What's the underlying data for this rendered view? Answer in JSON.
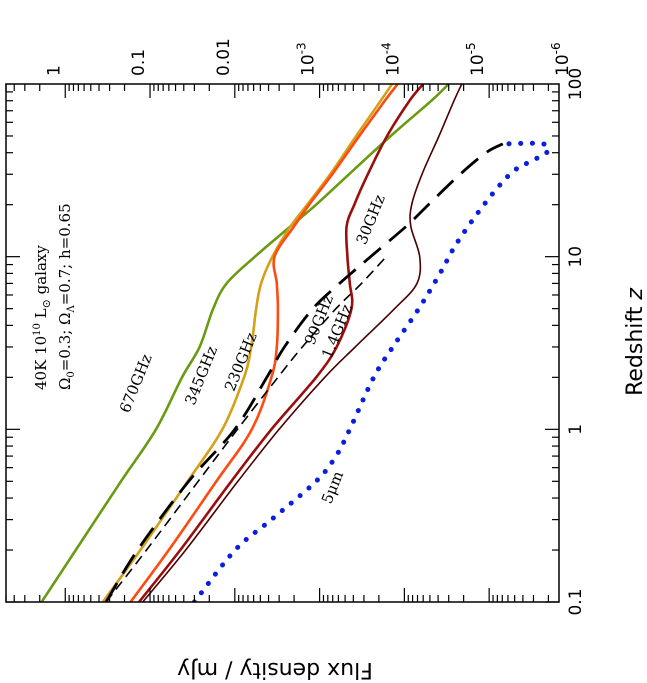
{
  "chart_data": {
    "type": "line",
    "orientation": "rotated-90-clockwise",
    "xlabel_parts": {
      "text": "Redshift ",
      "var": "z"
    },
    "ylabel": "Flux density / mJy",
    "x_scale": "log",
    "y_scale": "log",
    "xlim": [
      0.1,
      100
    ],
    "ylim": [
      1.5e-06,
      5
    ],
    "x_ticks": [
      {
        "value": 0.1,
        "label": "0.1"
      },
      {
        "value": 1,
        "label": "1"
      },
      {
        "value": 10,
        "label": "10"
      },
      {
        "value": 100,
        "label": "100"
      }
    ],
    "y_ticks": [
      {
        "value": 1,
        "label": "1",
        "base": "",
        "exp": ""
      },
      {
        "value": 0.1,
        "label": "0.1",
        "base": "",
        "exp": ""
      },
      {
        "value": 0.01,
        "label": "0.01",
        "base": "",
        "exp": ""
      },
      {
        "value": 0.001,
        "label": "",
        "base": "10",
        "exp": "-3"
      },
      {
        "value": 0.0001,
        "label": "",
        "base": "10",
        "exp": "-4"
      },
      {
        "value": 1e-05,
        "label": "",
        "base": "10",
        "exp": "-5"
      },
      {
        "value": 1e-06,
        "label": "",
        "base": "10",
        "exp": "-6"
      }
    ],
    "annotations": {
      "line1": {
        "prefix": "40K 10",
        "sup": "10",
        "mid": " L",
        "sub": "⊙",
        "suffix": " galaxy"
      },
      "line2": {
        "o": "Ω",
        "sub0": "0",
        "p1": "=0.3; ",
        "o2": "Ω",
        "subL": "Λ",
        "p2": "=0.7; h=0.65"
      }
    },
    "series": [
      {
        "name": "670GHz",
        "color": "#6b9a12",
        "width": 2.6,
        "dash": "",
        "points": [
          [
            0.1,
            1.9
          ],
          [
            0.2,
            0.75
          ],
          [
            0.5,
            0.22
          ],
          [
            1,
            0.085
          ],
          [
            2,
            0.042
          ],
          [
            3,
            0.026
          ],
          [
            5,
            0.018
          ],
          [
            7,
            0.0125
          ],
          [
            10,
            0.0058
          ],
          [
            15,
            0.0022
          ],
          [
            20,
            0.0011
          ],
          [
            30,
            0.00045
          ],
          [
            50,
            0.000145
          ],
          [
            80,
            4.8e-05
          ],
          [
            100,
            3e-05
          ]
        ]
      },
      {
        "name": "345GHz",
        "color": "#d4a017",
        "width": 2.6,
        "dash": "",
        "points": [
          [
            0.1,
            0.36
          ],
          [
            0.2,
            0.13
          ],
          [
            0.5,
            0.036
          ],
          [
            1,
            0.014
          ],
          [
            2,
            0.0078
          ],
          [
            3,
            0.0064
          ],
          [
            5,
            0.0056
          ],
          [
            7,
            0.0049
          ],
          [
            10,
            0.0036
          ],
          [
            15,
            0.0022
          ],
          [
            20,
            0.0014
          ],
          [
            30,
            0.00075
          ],
          [
            50,
            0.00037
          ],
          [
            80,
            0.00019
          ],
          [
            100,
            0.00014
          ]
        ]
      },
      {
        "name": "230GHz",
        "color": "#ff4a12",
        "width": 2.6,
        "dash": "",
        "points": [
          [
            0.1,
            0.17
          ],
          [
            0.2,
            0.06
          ],
          [
            0.5,
            0.0165
          ],
          [
            1,
            0.0063
          ],
          [
            2,
            0.0037
          ],
          [
            3,
            0.0032
          ],
          [
            5,
            0.0031
          ],
          [
            7,
            0.0032
          ],
          [
            10,
            0.0034
          ],
          [
            15,
            0.002
          ],
          [
            20,
            0.00133
          ],
          [
            30,
            0.00071
          ],
          [
            50,
            0.00034
          ],
          [
            80,
            0.00017
          ],
          [
            100,
            0.00012
          ]
        ]
      },
      {
        "name": "1.4GHz",
        "color": "#000000",
        "width": 1.6,
        "dash": "10,6",
        "points": [
          [
            0.1,
            0.33
          ],
          [
            0.2,
            0.11
          ],
          [
            0.5,
            0.027
          ],
          [
            1,
            0.0093
          ],
          [
            2,
            0.0031
          ],
          [
            3,
            0.0016
          ],
          [
            5,
            0.00064
          ],
          [
            7,
            0.00032
          ],
          [
            10,
            0.000164
          ]
        ]
      },
      {
        "name": "90GHz",
        "color": "#9c0e0e",
        "width": 2.6,
        "dash": "",
        "points": [
          [
            0.1,
            0.135
          ],
          [
            0.2,
            0.044
          ],
          [
            0.5,
            0.011
          ],
          [
            1,
            0.0037
          ],
          [
            2,
            0.0011
          ],
          [
            3,
            0.00063
          ],
          [
            5,
            0.00042
          ],
          [
            7,
            0.00044
          ],
          [
            10,
            0.00047
          ],
          [
            15,
            0.00048
          ],
          [
            20,
            0.00039
          ],
          [
            30,
            0.00027
          ],
          [
            50,
            0.00016
          ],
          [
            80,
            8.7e-05
          ],
          [
            100,
            6e-05
          ]
        ]
      },
      {
        "name": "30GHz",
        "color": "#4a0000",
        "width": 1.6,
        "dash": "",
        "points": [
          [
            0.1,
            0.122
          ],
          [
            0.2,
            0.038
          ],
          [
            0.5,
            0.0092
          ],
          [
            1,
            0.003
          ],
          [
            2,
            0.00087
          ],
          [
            3,
            0.00038
          ],
          [
            5,
            0.00013
          ],
          [
            7,
            7.1e-05
          ],
          [
            10,
            6.6e-05
          ],
          [
            15,
            8.4e-05
          ],
          [
            20,
            8.2e-05
          ],
          [
            30,
            6.2e-05
          ],
          [
            50,
            3.9e-05
          ],
          [
            80,
            2.6e-05
          ],
          [
            100,
            2.1e-05
          ]
        ]
      },
      {
        "name": "",
        "color": "#000000",
        "width": 2.8,
        "dash": "22,11",
        "points": [
          [
            0.1,
            0.33
          ],
          [
            0.2,
            0.14
          ],
          [
            0.5,
            0.035
          ],
          [
            1,
            0.01
          ],
          [
            2,
            0.0042
          ],
          [
            3,
            0.0026
          ],
          [
            5,
            0.0012
          ],
          [
            7,
            0.00058
          ],
          [
            10,
            0.00025
          ],
          [
            15,
            9.5e-05
          ],
          [
            20,
            5.2e-05
          ],
          [
            30,
            2.2e-05
          ],
          [
            40,
            1.09e-05
          ],
          [
            45,
            6.9e-06
          ]
        ]
      },
      {
        "name": "5μm",
        "color": "#0a1ee0",
        "width": 5,
        "dash": "0.1,11.5",
        "cap": "round",
        "points": [
          [
            0.1,
            0.03
          ],
          [
            0.2,
            0.0099
          ],
          [
            0.3,
            0.0037
          ],
          [
            0.5,
            0.0011
          ],
          [
            0.7,
            0.00064
          ],
          [
            1,
            0.00044
          ],
          [
            2,
            0.00023
          ],
          [
            3,
            0.000137
          ],
          [
            5,
            6.75e-05
          ],
          [
            8,
            3.8e-05
          ],
          [
            12,
            2.4e-05
          ],
          [
            20,
            1.15e-05
          ],
          [
            30,
            5.7e-06
          ],
          [
            35,
            3.5e-06
          ],
          [
            40,
            2.1e-06
          ],
          [
            45,
            2.3e-06
          ],
          [
            45,
            6.9e-06
          ]
        ]
      }
    ],
    "curve_labels": {
      "670GHz": "670GHz",
      "345GHz": "345GHz",
      "230GHz": "230GHz",
      "90GHz": "90GHz",
      "1.4GHz": "1.4GHz",
      "30GHz": "30GHz",
      "5μm": "5μm"
    },
    "grid": false,
    "legend": "none"
  }
}
